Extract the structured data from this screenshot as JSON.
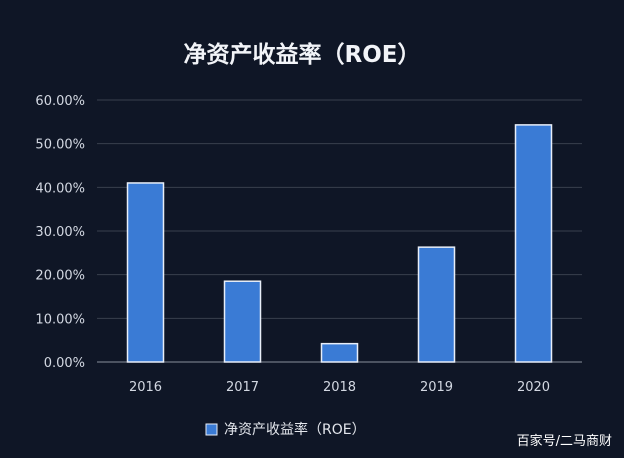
{
  "chart_data": {
    "type": "bar",
    "title": "净资产收益率（ROE）",
    "categories": [
      "2016",
      "2017",
      "2018",
      "2019",
      "2020"
    ],
    "series": [
      {
        "name": "净资产收益率（ROE）",
        "values": [
          41.0,
          18.5,
          4.2,
          26.3,
          54.3
        ]
      }
    ],
    "ylim": [
      0,
      60
    ],
    "yticks": [
      "0.00%",
      "10.00%",
      "20.00%",
      "30.00%",
      "40.00%",
      "50.00%",
      "60.00%"
    ],
    "xlabel": "",
    "ylabel": "",
    "grid": true,
    "legend_position": "bottom"
  },
  "colors": {
    "bar": "#3a7bd5",
    "bar_edge": "#e8eef8",
    "grid": "#39404e",
    "background": "#0f1626"
  },
  "watermark": "百家号/二马商财"
}
